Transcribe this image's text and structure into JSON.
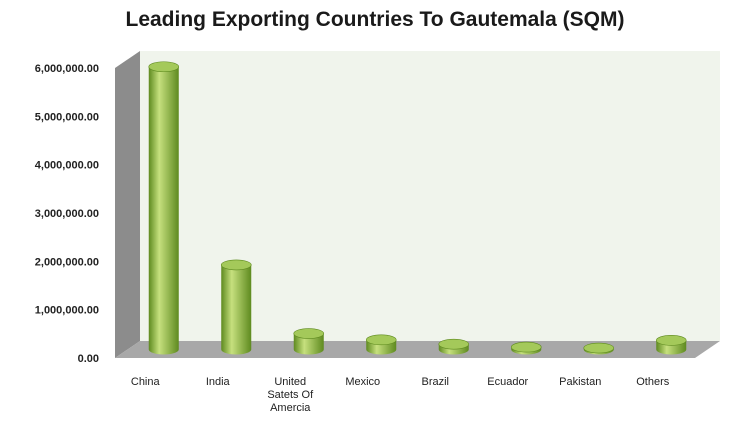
{
  "chart_data": {
    "type": "bar",
    "title": "Leading Exporting Countries To Gautemala (SQM)",
    "xlabel": "",
    "ylabel": "",
    "categories": [
      "China",
      "India",
      "United Satets Of Amercia",
      "Mexico",
      "Brazil",
      "Ecuador",
      "Pakistan",
      "Others"
    ],
    "category_lines": [
      [
        "China"
      ],
      [
        "India"
      ],
      [
        "United",
        "Satets Of",
        "Amercia"
      ],
      [
        "Mexico"
      ],
      [
        "Brazil"
      ],
      [
        "Ecuador"
      ],
      [
        "Pakistan"
      ],
      [
        "Others"
      ]
    ],
    "values": [
      5850000,
      1750000,
      330000,
      200000,
      110000,
      50000,
      30000,
      190000
    ],
    "ylim": [
      0,
      6000000
    ],
    "yticks": [
      0,
      1000000,
      2000000,
      3000000,
      4000000,
      5000000,
      6000000
    ],
    "ytick_labels": [
      "0.00",
      "1,000,000.00",
      "2,000,000.00",
      "3,000,000.00",
      "4,000,000.00",
      "5,000,000.00",
      "6,000,000.00"
    ],
    "grid": false,
    "legend": "none",
    "colors": {
      "bar": "#8ab33e",
      "bar_light": "#c6e07e",
      "bar_dark": "#5e8a1f",
      "bar_top": "#a4c95a",
      "wall": "#f0f4ec",
      "floor": "#a8a8a8",
      "side_wall": "#8c8c8c"
    }
  }
}
